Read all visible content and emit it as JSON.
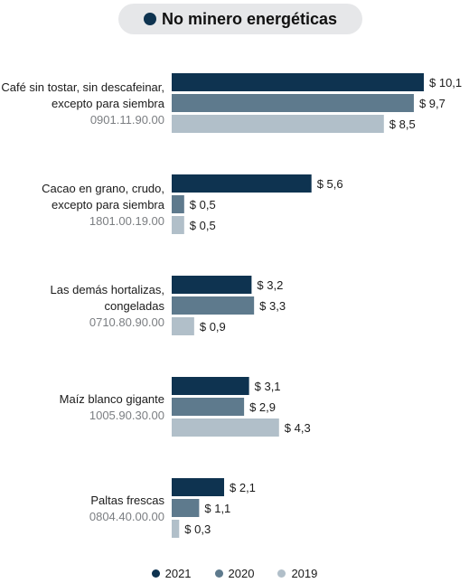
{
  "header": {
    "title": "No minero energéticas"
  },
  "colors": {
    "2021": "#0e3350",
    "2020": "#5e7a8d",
    "2019": "#b1bfc9"
  },
  "chart_data": {
    "type": "bar",
    "orientation": "horizontal",
    "title": "No minero energéticas",
    "value_prefix": "$ ",
    "decimal_separator": ",",
    "categories": [
      {
        "lines": [
          "Café sin tostar, sin descafeinar,",
          "excepto para siembra"
        ],
        "code": "0901.11.90.00"
      },
      {
        "lines": [
          "Cacao en grano, crudo,",
          "excepto para siembra"
        ],
        "code": "1801.00.19.00"
      },
      {
        "lines": [
          "Las demás hortalizas,",
          "congeladas"
        ],
        "code": "0710.80.90.00"
      },
      {
        "lines": [
          "Maíz blanco gigante"
        ],
        "code": "1005.90.30.00"
      },
      {
        "lines": [
          "Paltas frescas"
        ],
        "code": "0804.40.00.00"
      }
    ],
    "series": [
      {
        "name": "2021",
        "values": [
          10.1,
          5.6,
          3.2,
          3.1,
          2.1
        ],
        "labels": [
          "$ 10,1",
          "$ 5,6",
          "$ 3,2",
          "$ 3,1",
          "$ 2,1"
        ]
      },
      {
        "name": "2020",
        "values": [
          9.7,
          0.5,
          3.3,
          2.9,
          1.1
        ],
        "labels": [
          "$ 9,7",
          "$ 0,5",
          "$ 3,3",
          "$ 2,9",
          "$ 1,1"
        ]
      },
      {
        "name": "2019",
        "values": [
          8.5,
          0.5,
          0.9,
          4.3,
          0.3
        ],
        "labels": [
          "$ 8,5",
          "$ 0,5",
          "$ 0,9",
          "$ 4,3",
          "$ 0,3"
        ]
      }
    ],
    "xlim": [
      0,
      10.1
    ],
    "grid": false,
    "legend": "bottom-center"
  },
  "legend": {
    "items": [
      {
        "label": "2021",
        "color": "#0e3350"
      },
      {
        "label": "2020",
        "color": "#5e7a8d"
      },
      {
        "label": "2019",
        "color": "#b1bfc9"
      }
    ]
  }
}
